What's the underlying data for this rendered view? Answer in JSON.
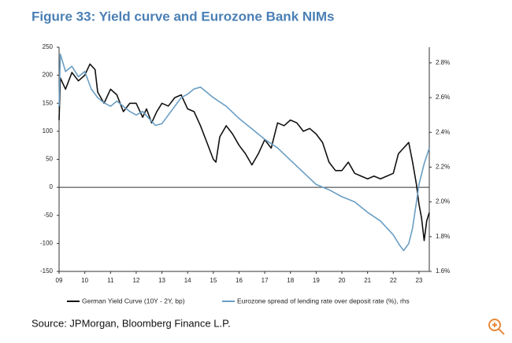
{
  "chart_data": {
    "type": "line",
    "title": "Figure 33: Yield curve and Eurozone Bank NIMs",
    "source": "Source: JPMorgan, Bloomberg Finance L.P.",
    "xlim": [
      2009,
      2023.4
    ],
    "xticks": [
      {
        "value": 2009,
        "label": "09"
      },
      {
        "value": 2010,
        "label": "10"
      },
      {
        "value": 2011,
        "label": "11"
      },
      {
        "value": 2012,
        "label": "12"
      },
      {
        "value": 2013,
        "label": "13"
      },
      {
        "value": 2014,
        "label": "14"
      },
      {
        "value": 2015,
        "label": "15"
      },
      {
        "value": 2016,
        "label": "16"
      },
      {
        "value": 2017,
        "label": "17"
      },
      {
        "value": 2018,
        "label": "18"
      },
      {
        "value": 2019,
        "label": "19"
      },
      {
        "value": 2020,
        "label": "20"
      },
      {
        "value": 2021,
        "label": "21"
      },
      {
        "value": 2022,
        "label": "22"
      },
      {
        "value": 2023,
        "label": "23"
      }
    ],
    "ylim": [
      -150,
      250
    ],
    "yticks": [
      -150,
      -100,
      -50,
      0,
      50,
      100,
      150,
      200,
      250
    ],
    "y2lim": [
      1.6,
      2.89
    ],
    "y2ticks": [
      {
        "value": 1.6,
        "label": "1.6%"
      },
      {
        "value": 1.8,
        "label": "1.8%"
      },
      {
        "value": 2.0,
        "label": "2.0%"
      },
      {
        "value": 2.2,
        "label": "2.2%"
      },
      {
        "value": 2.4,
        "label": "2.4%"
      },
      {
        "value": 2.6,
        "label": "2.6%"
      },
      {
        "value": 2.8,
        "label": "2.8%"
      }
    ],
    "series": [
      {
        "name": "German Yield Curve (10Y - 2Y, bp)",
        "color": "#111111",
        "x": [
          2009.0,
          2009.05,
          2009.25,
          2009.5,
          2009.75,
          2010.0,
          2010.2,
          2010.4,
          2010.5,
          2010.75,
          2011.0,
          2011.25,
          2011.5,
          2011.75,
          2012.0,
          2012.25,
          2012.4,
          2012.6,
          2012.8,
          2013.0,
          2013.25,
          2013.5,
          2013.75,
          2014.0,
          2014.25,
          2014.5,
          2014.75,
          2015.0,
          2015.1,
          2015.25,
          2015.5,
          2015.75,
          2016.0,
          2016.25,
          2016.5,
          2016.75,
          2017.0,
          2017.25,
          2017.5,
          2017.75,
          2018.0,
          2018.25,
          2018.5,
          2018.75,
          2019.0,
          2019.25,
          2019.5,
          2019.75,
          2020.0,
          2020.25,
          2020.5,
          2020.75,
          2021.0,
          2021.25,
          2021.5,
          2021.75,
          2022.0,
          2022.2,
          2022.5,
          2022.6,
          2022.75,
          2022.9,
          2023.0,
          2023.1,
          2023.2,
          2023.3,
          2023.4
        ],
        "values": [
          120,
          195,
          175,
          205,
          190,
          200,
          220,
          210,
          170,
          150,
          175,
          165,
          135,
          150,
          150,
          125,
          140,
          115,
          135,
          150,
          145,
          160,
          165,
          140,
          135,
          110,
          80,
          50,
          45,
          90,
          110,
          95,
          75,
          60,
          40,
          60,
          85,
          70,
          115,
          110,
          120,
          115,
          100,
          105,
          95,
          80,
          45,
          30,
          30,
          45,
          25,
          20,
          15,
          20,
          15,
          20,
          25,
          60,
          75,
          80,
          45,
          5,
          -30,
          -55,
          -95,
          -60,
          -45
        ]
      },
      {
        "name": "Eurozone spread of lending rate over deposit rate (%), rhs",
        "color": "#6a9ec4",
        "axis": "y2",
        "x": [
          2009.0,
          2009.05,
          2009.25,
          2009.5,
          2009.75,
          2010.0,
          2010.25,
          2010.5,
          2010.75,
          2011.0,
          2011.25,
          2011.5,
          2011.75,
          2012.0,
          2012.25,
          2012.5,
          2012.75,
          2013.0,
          2013.25,
          2013.5,
          2013.75,
          2014.0,
          2014.25,
          2014.5,
          2014.75,
          2015.0,
          2015.5,
          2016.0,
          2016.5,
          2017.0,
          2017.5,
          2018.0,
          2018.5,
          2019.0,
          2019.5,
          2020.0,
          2020.5,
          2021.0,
          2021.5,
          2022.0,
          2022.25,
          2022.4,
          2022.6,
          2022.75,
          2022.9,
          2023.0,
          2023.2,
          2023.4
        ],
        "values": [
          2.55,
          2.85,
          2.75,
          2.78,
          2.72,
          2.75,
          2.65,
          2.6,
          2.57,
          2.55,
          2.58,
          2.55,
          2.52,
          2.5,
          2.52,
          2.48,
          2.44,
          2.45,
          2.5,
          2.55,
          2.6,
          2.62,
          2.65,
          2.66,
          2.63,
          2.6,
          2.55,
          2.48,
          2.42,
          2.36,
          2.31,
          2.24,
          2.17,
          2.1,
          2.07,
          2.03,
          2.0,
          1.94,
          1.89,
          1.81,
          1.75,
          1.72,
          1.76,
          1.85,
          2.0,
          2.1,
          2.22,
          2.31
        ]
      }
    ]
  }
}
